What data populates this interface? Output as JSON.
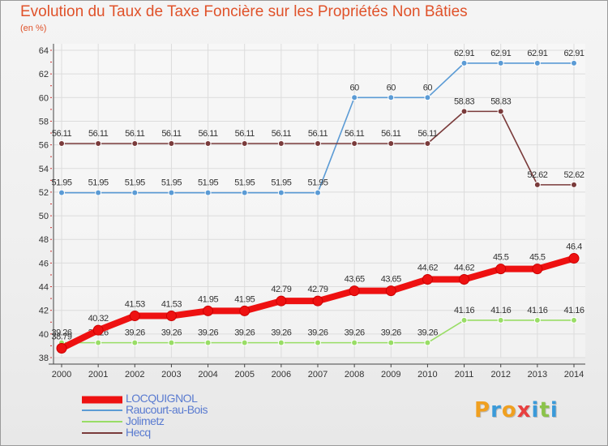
{
  "header": {
    "title": "Evolution du Taux de Taxe Foncière sur les Propriétés Non Bâties",
    "unit": "(en %)"
  },
  "chart_data": {
    "type": "line",
    "title": "Evolution du Taux de Taxe Foncière sur les Propriétés Non Bâties",
    "ylabel": "(en %)",
    "xlabel": "",
    "x": [
      "2000",
      "2001",
      "2002",
      "2003",
      "2004",
      "2005",
      "2006",
      "2007",
      "2008",
      "2009",
      "2010",
      "2011",
      "2012",
      "2013",
      "2014"
    ],
    "ylim": [
      38,
      64
    ],
    "yticks": [
      "38",
      "40",
      "42",
      "44",
      "46",
      "48",
      "50",
      "52",
      "54",
      "56",
      "58",
      "60",
      "62",
      "64"
    ],
    "grid": true,
    "series": [
      {
        "name": "LOCQUIGNOL",
        "color": "#ee1111",
        "values": [
          38.79,
          40.32,
          41.53,
          41.53,
          41.95,
          41.95,
          42.79,
          42.79,
          43.65,
          43.65,
          44.62,
          44.62,
          45.5,
          45.5,
          46.4
        ],
        "labels": [
          "38.79",
          "40.32",
          "41.53",
          "41.53",
          "41.95",
          "41.95",
          "42.79",
          "42.79",
          "43.65",
          "43.65",
          "44.62",
          "44.62",
          "45.5",
          "45.5",
          "46.4"
        ]
      },
      {
        "name": "Raucourt-au-Bois",
        "color": "#5b9bd5",
        "values": [
          51.95,
          51.95,
          51.95,
          51.95,
          51.95,
          51.95,
          51.95,
          51.95,
          60,
          60,
          60,
          62.91,
          62.91,
          62.91,
          62.91
        ],
        "labels": [
          "51.95",
          "51.95",
          "51.95",
          "51.95",
          "51.95",
          "51.95",
          "51.95",
          "51.95",
          "60",
          "60",
          "60",
          "62.91",
          "62.91",
          "62.91",
          "62.91"
        ]
      },
      {
        "name": "Jolimetz",
        "color": "#99dd66",
        "values": [
          39.26,
          39.26,
          39.26,
          39.26,
          39.26,
          39.26,
          39.26,
          39.26,
          39.26,
          39.26,
          39.26,
          41.16,
          41.16,
          41.16,
          41.16
        ],
        "labels": [
          "39.26",
          "39.26",
          "39.26",
          "39.26",
          "39.26",
          "39.26",
          "39.26",
          "39.26",
          "39.26",
          "39.26",
          "39.26",
          "41.16",
          "41.16",
          "41.16",
          "41.16"
        ]
      },
      {
        "name": "Hecq",
        "color": "#7a3b3b",
        "values": [
          56.11,
          56.11,
          56.11,
          56.11,
          56.11,
          56.11,
          56.11,
          56.11,
          56.11,
          56.11,
          56.11,
          58.83,
          58.83,
          52.62,
          52.62
        ],
        "labels": [
          "56.11",
          "56.11",
          "56.11",
          "56.11",
          "56.11",
          "56.11",
          "56.11",
          "56.11",
          "56.11",
          "56.11",
          "56.11",
          "58.83",
          "58.83",
          "52.62",
          "52.62"
        ]
      }
    ],
    "legend": "bottom-left"
  },
  "logo": {
    "letters": [
      "P",
      "r",
      "o",
      "x",
      "i",
      "t",
      "i"
    ],
    "colors": [
      "#f0a020",
      "#3a9ad9",
      "#f0a020",
      "#e84040",
      "#3a9ad9",
      "#8bc34a",
      "#3a9ad9"
    ]
  }
}
